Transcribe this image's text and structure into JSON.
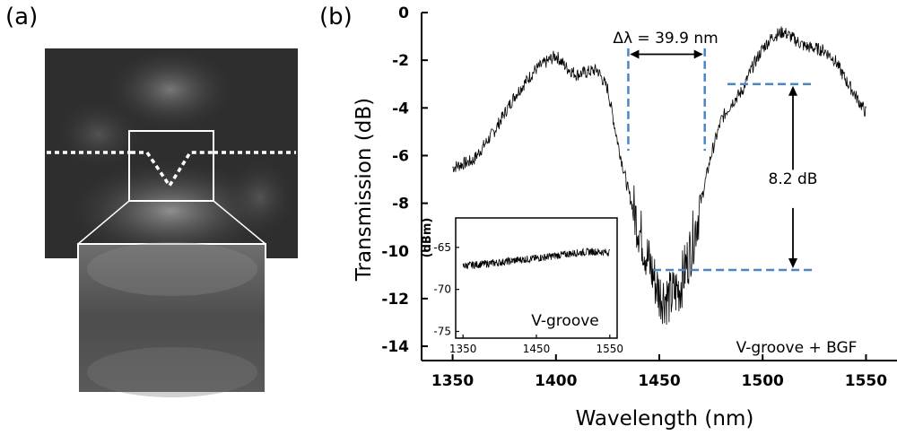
{
  "panels": {
    "a": "(a)",
    "b": "(b)"
  },
  "chart_data": [
    {
      "type": "line",
      "panel": "(b)",
      "xlabel": "Wavelength (nm)",
      "ylabel": "Transmission (dB)",
      "xlim": [
        1335,
        1565
      ],
      "ylim": [
        -14.6,
        0
      ],
      "xticks": [
        1350,
        1400,
        1450,
        1500,
        1550
      ],
      "yticks": [
        0,
        -2,
        -4,
        -6,
        -8,
        -10,
        -12,
        -14
      ],
      "grid": false,
      "series": [
        {
          "x": [
            1350,
            1360,
            1370,
            1380,
            1390,
            1400,
            1405,
            1410,
            1420,
            1425,
            1430,
            1435,
            1440,
            1445,
            1450,
            1455,
            1460,
            1465,
            1470,
            1475,
            1480,
            1485,
            1490,
            1495,
            1500,
            1505,
            1510,
            1515,
            1520,
            1525,
            1530,
            1535,
            1540,
            1545,
            1550
          ],
          "y": [
            -6.5,
            -6.2,
            -5.0,
            -3.5,
            -2.4,
            -1.8,
            -2.3,
            -2.6,
            -2.4,
            -3.2,
            -5.5,
            -7.5,
            -9.0,
            -10.5,
            -11.8,
            -12.0,
            -11.5,
            -10.0,
            -8.0,
            -6.0,
            -4.5,
            -3.8,
            -3.3,
            -2.3,
            -1.5,
            -1.0,
            -0.8,
            -1.1,
            -1.4,
            -1.5,
            -1.6,
            -2.0,
            -2.8,
            -3.5,
            -4.2
          ],
          "noise": "high-frequency fluctuation"
        }
      ],
      "annotations": {
        "bandwidth_label": "Δλ = 39.9 nm",
        "depth_label": "8.2 dB",
        "trace_label": "V-groove + BGF",
        "bandwidth_from_x": 1435,
        "bandwidth_to_x": 1472,
        "depth_top_y": -3.0,
        "depth_bottom_y": -10.8,
        "marker_color": "#4a86c6"
      }
    },
    {
      "type": "line",
      "panel": "inset",
      "ylabel": "(dBm)",
      "xlim": [
        1340,
        1560
      ],
      "ylim": [
        -75.8,
        -61.5
      ],
      "xticks": [
        1350,
        1450,
        1550
      ],
      "yticks": [
        -65,
        -70,
        -75
      ],
      "label": "V-groove",
      "series": [
        {
          "x": [
            1350,
            1375,
            1400,
            1425,
            1450,
            1475,
            1500,
            1525,
            1550
          ],
          "y": [
            -67.2,
            -67.0,
            -66.8,
            -66.5,
            -66.3,
            -66.0,
            -65.7,
            -65.5,
            -65.6
          ]
        }
      ]
    }
  ]
}
